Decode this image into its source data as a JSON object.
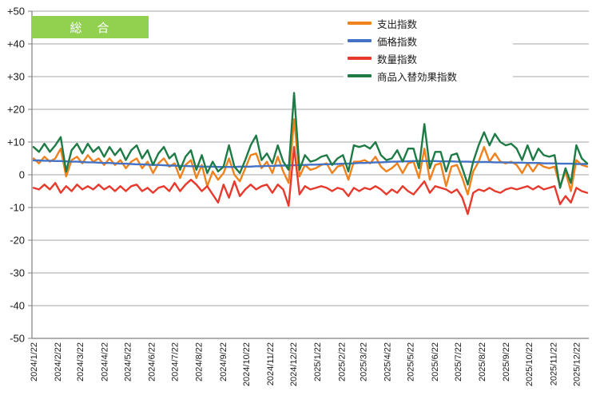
{
  "title_box": {
    "label": "総　合",
    "bg_color": "#92d050",
    "text_color": "#ffffff"
  },
  "legend": {
    "items": [
      {
        "label": "支出指数",
        "color": "#f0821e"
      },
      {
        "label": "価格指数",
        "color": "#4472c4"
      },
      {
        "label": "数量指数",
        "color": "#e8392d"
      },
      {
        "label": "商品入替効果指数",
        "color": "#1e7b45"
      }
    ]
  },
  "chart_data": {
    "type": "line",
    "title": "総　合",
    "x_start": "2024/1/22",
    "x_step_days": 7,
    "x_tick_labels": [
      "2024/1/22",
      "2024/2/22",
      "2024/3/22",
      "2024/4/22",
      "2024/5/22",
      "2024/6/22",
      "2024/7/22",
      "2024/8/22",
      "2024/9/22",
      "2024/10/22",
      "2024/11/22",
      "2024/12/22",
      "2025/1/22",
      "2025/2/22",
      "2025/3/22",
      "2025/4/22",
      "2025/5/22",
      "2025/6/22",
      "2025/7/22",
      "2025/8/22",
      "2025/9/22",
      "2025/10/22",
      "2025/11/22",
      "2025/12/22"
    ],
    "ylim": [
      -50,
      50
    ],
    "y_ticks": [
      "+50",
      "+40",
      "+30",
      "+20",
      "+10",
      "0",
      "-10",
      "-20",
      "-30",
      "-40",
      "-50"
    ],
    "grid": true,
    "legend_position": "top-center",
    "series": [
      {
        "name": "支出指数",
        "color": "#f0821e",
        "values": [
          5,
          3.5,
          5.5,
          4,
          5,
          8,
          -0.5,
          4.5,
          5.5,
          3.5,
          6,
          4,
          5,
          3,
          5,
          3,
          4.5,
          2,
          4,
          5,
          2,
          4,
          0.5,
          3.5,
          5,
          2.5,
          3.5,
          -1,
          3,
          4.5,
          -1,
          3,
          -3.5,
          1,
          -1.5,
          0.5,
          5,
          0,
          -2,
          2,
          6,
          6.5,
          2,
          4,
          0.5,
          5.5,
          1,
          -2.5,
          17,
          -0.5,
          3,
          1.5,
          2,
          3,
          3.5,
          0.5,
          2.5,
          3,
          -1.5,
          4,
          4,
          4.5,
          3.5,
          5.5,
          2.5,
          1,
          2,
          3.5,
          0.5,
          3.5,
          4,
          -1,
          8,
          -1.5,
          3,
          3.5,
          -3.5,
          2.5,
          3,
          -1,
          -6,
          1,
          4,
          8.5,
          4,
          6.5,
          4,
          3.5,
          4,
          3,
          0.5,
          3.5,
          1,
          3.5,
          2.5,
          2,
          2.5,
          -3.5,
          1,
          -5,
          4.5,
          3,
          2.5
        ]
      },
      {
        "name": "価格指数",
        "color": "#4472c4",
        "values": [
          4.4,
          4.4,
          4.3,
          4.3,
          4.2,
          4.2,
          4.1,
          4.0,
          4.0,
          3.9,
          3.8,
          3.8,
          3.7,
          3.6,
          3.6,
          3.5,
          3.4,
          3.4,
          3.3,
          3.2,
          3.2,
          3.1,
          3.0,
          3.0,
          2.9,
          2.8,
          2.8,
          2.7,
          2.7,
          2.6,
          2.6,
          2.5,
          2.5,
          2.5,
          2.4,
          2.4,
          2.4,
          2.4,
          2.5,
          2.5,
          2.5,
          2.6,
          2.6,
          2.7,
          2.7,
          2.8,
          2.8,
          2.9,
          2.9,
          3.0,
          3.0,
          3.1,
          3.1,
          3.2,
          3.2,
          3.3,
          3.3,
          3.4,
          3.4,
          3.5,
          3.6,
          3.6,
          3.7,
          3.8,
          3.8,
          3.9,
          4.0,
          4.0,
          4.1,
          4.1,
          4.2,
          4.2,
          4.2,
          4.2,
          4.2,
          4.1,
          4.1,
          4.1,
          4.0,
          4.0,
          4.0,
          3.9,
          3.9,
          3.9,
          3.9,
          3.8,
          3.8,
          3.8,
          3.7,
          3.7,
          3.7,
          3.6,
          3.6,
          3.6,
          3.5,
          3.5,
          3.5,
          3.4,
          3.4,
          3.4,
          3.3,
          3.3,
          3.3
        ]
      },
      {
        "name": "数量指数",
        "color": "#e8392d",
        "values": [
          -4,
          -4.5,
          -3,
          -4.5,
          -2.5,
          -5.5,
          -3.5,
          -5,
          -3,
          -4.5,
          -3.5,
          -4.5,
          -3,
          -4.5,
          -3.5,
          -5,
          -3.5,
          -5,
          -3.5,
          -3,
          -5,
          -4,
          -5.5,
          -4,
          -3.5,
          -5,
          -2.5,
          -5,
          -3,
          -1.5,
          -3,
          -5,
          -3.5,
          -6,
          -8.5,
          -3,
          -7,
          -2,
          -6.5,
          -4.5,
          -3,
          -4.5,
          -3.5,
          -3,
          -5.5,
          -3,
          -4.5,
          -9.5,
          8.5,
          -6,
          -3.5,
          -4.5,
          -4,
          -3.5,
          -4,
          -5,
          -4,
          -4.5,
          -6.5,
          -4,
          -5,
          -4,
          -4.5,
          -3.5,
          -4.5,
          -6,
          -4.5,
          -5.5,
          -3.5,
          -5,
          -6,
          -4,
          -2,
          -5.5,
          -3.5,
          -4,
          -4.5,
          -5.5,
          -4.5,
          -7,
          -12,
          -5.5,
          -4.5,
          -5,
          -4,
          -5,
          -5.5,
          -4.5,
          -4,
          -4.5,
          -4,
          -3.5,
          -4.5,
          -3.5,
          -4.5,
          -4,
          -3.5,
          -9,
          -6.5,
          -8.5,
          -4,
          -5,
          -5.5
        ]
      },
      {
        "name": "商品入替効果指数",
        "color": "#1e7b45",
        "values": [
          8.5,
          7,
          9.5,
          7,
          9,
          11.5,
          1,
          7.5,
          9.5,
          6.5,
          9.5,
          7,
          8.5,
          5.5,
          8.5,
          6,
          8,
          4.5,
          7.5,
          9,
          5,
          7.5,
          3,
          6.5,
          8.5,
          5,
          6.5,
          1.5,
          5.5,
          7.5,
          1.5,
          6,
          0.5,
          4,
          1,
          2.5,
          9,
          2.5,
          0.5,
          4.5,
          9,
          12,
          4.5,
          6.5,
          3.5,
          9,
          4,
          1.5,
          25,
          1.5,
          6,
          4,
          4.5,
          5.5,
          6,
          3,
          5,
          6,
          1,
          9,
          8.5,
          9,
          8,
          10,
          6,
          4.5,
          5,
          7.5,
          4,
          8,
          8,
          2,
          15.5,
          2,
          7,
          7,
          1,
          6,
          6.5,
          2,
          -3,
          4,
          9,
          13,
          9,
          12.5,
          10,
          9,
          9.5,
          8,
          4.5,
          9,
          4.5,
          8,
          6,
          5.5,
          6,
          -4,
          2,
          -2.5,
          9,
          5,
          3.5
        ]
      }
    ]
  }
}
